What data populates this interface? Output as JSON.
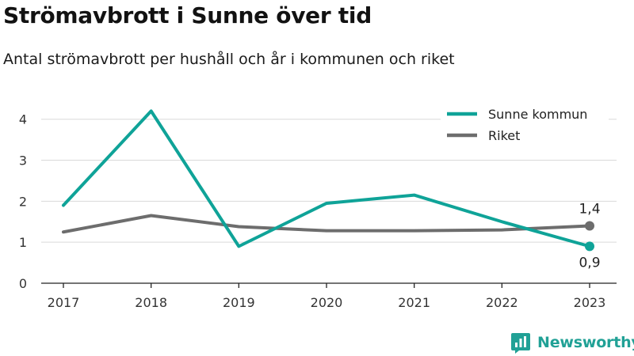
{
  "header": {
    "title": "Strömavbrott i Sunne över tid",
    "subtitle": "Antal strömavbrott per hushåll och år i kommunen och riket"
  },
  "brand": {
    "name": "Newsworthy",
    "icon": "newsworthy-logo-icon",
    "color": "#21a196"
  },
  "chart_data": {
    "type": "line",
    "title": "Strömavbrott i Sunne över tid",
    "subtitle": "Antal strömavbrott per hushåll och år i kommunen och riket",
    "xlabel": "",
    "ylabel": "",
    "x": [
      "2017",
      "2018",
      "2019",
      "2020",
      "2021",
      "2022",
      "2023"
    ],
    "ylim": [
      0,
      4.4
    ],
    "yticks": [
      0,
      1,
      2,
      3,
      4
    ],
    "grid": true,
    "legend_position": "top-right",
    "series": [
      {
        "name": "Sunne kommun",
        "color": "#0fa398",
        "values": [
          1.9,
          4.2,
          0.9,
          1.95,
          2.15,
          1.5,
          0.9
        ],
        "end_label": "0,9"
      },
      {
        "name": "Riket",
        "color": "#6d6d6d",
        "values": [
          1.25,
          1.65,
          1.38,
          1.28,
          1.28,
          1.3,
          1.4
        ],
        "end_label": "1,4"
      }
    ]
  }
}
